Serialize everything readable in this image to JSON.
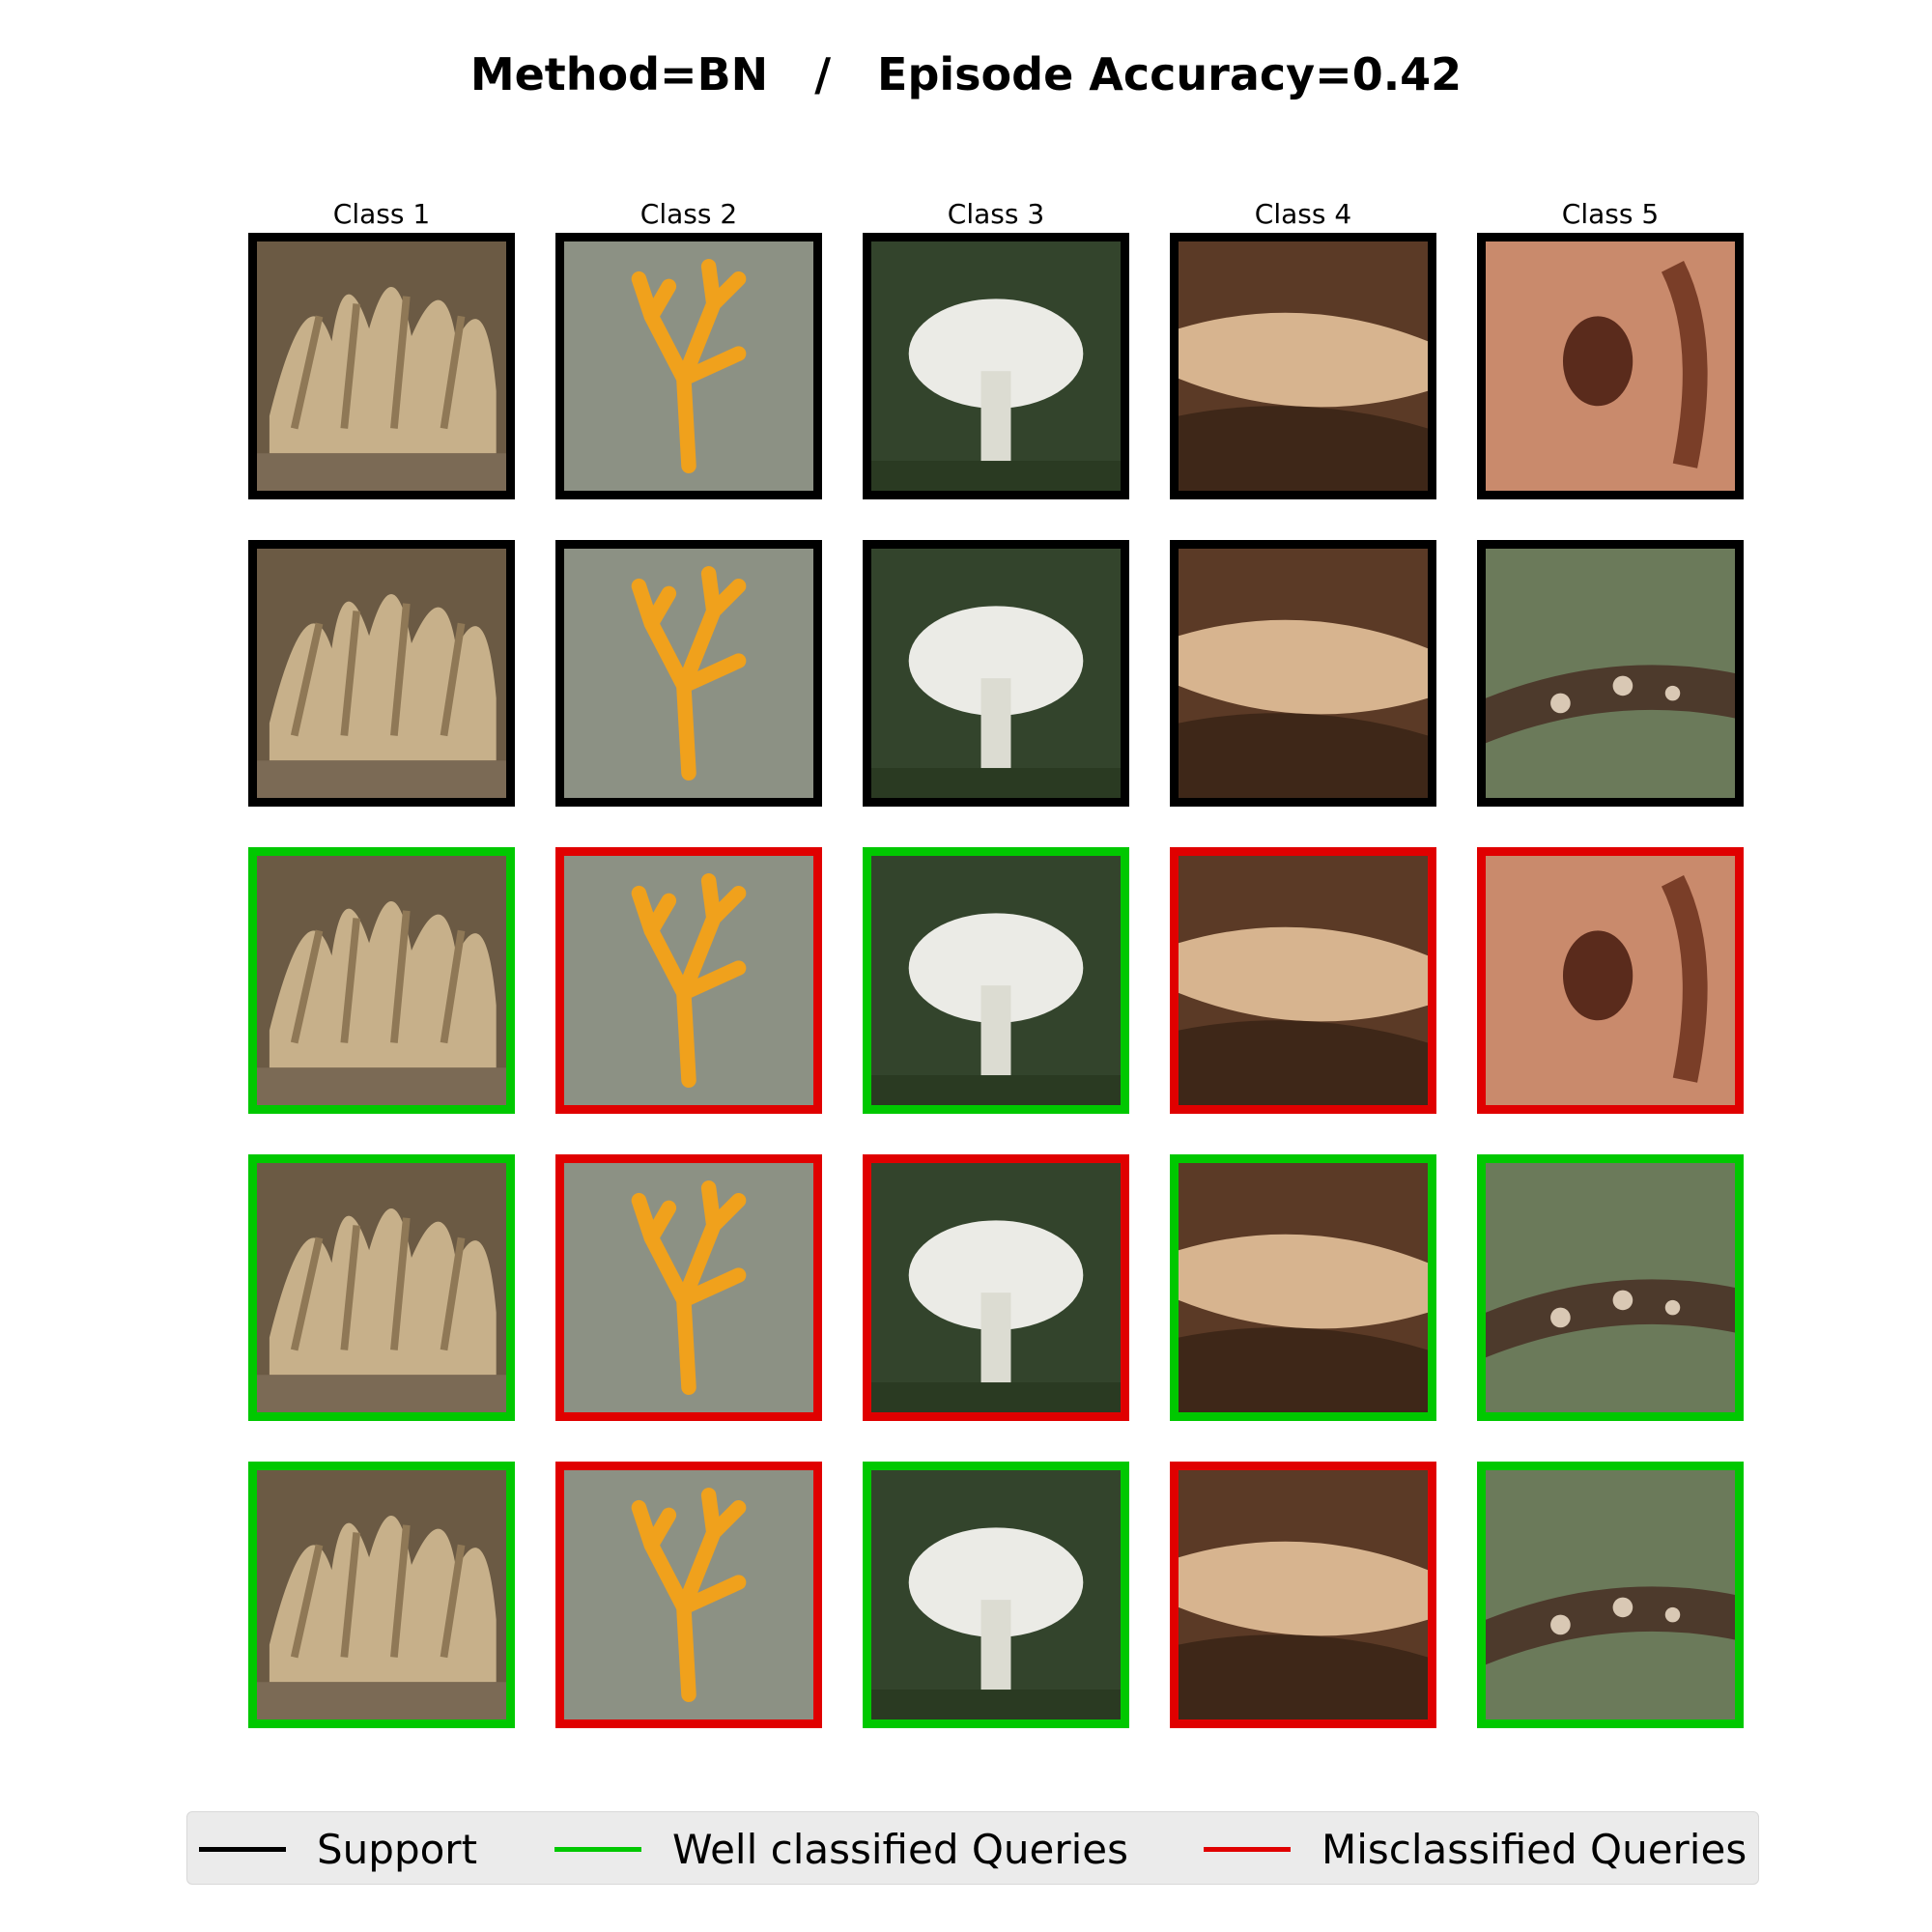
{
  "title": "Method=BN   /   Episode Accuracy=0.42",
  "columns": [
    "Class 1",
    "Class 2",
    "Class 3",
    "Class 4",
    "Class 5"
  ],
  "status_colors": {
    "support": "#000000",
    "well": "#00c800",
    "mis": "#e00000"
  },
  "grid": [
    [
      {
        "status": "support",
        "subject": "coral-fungus-tan"
      },
      {
        "status": "support",
        "subject": "orange-coral-fungus"
      },
      {
        "status": "support",
        "subject": "white-gilled-mushroom"
      },
      {
        "status": "support",
        "subject": "bark-crust-fungus"
      },
      {
        "status": "support",
        "subject": "microscope-spore"
      }
    ],
    [
      {
        "status": "support",
        "subject": "coral-fungus-tan"
      },
      {
        "status": "support",
        "subject": "orange-coral-fungus"
      },
      {
        "status": "support",
        "subject": "white-gilled-mushroom"
      },
      {
        "status": "support",
        "subject": "bark-crust-fungus"
      },
      {
        "status": "support",
        "subject": "branch-crust-fungus"
      }
    ],
    [
      {
        "status": "well",
        "subject": "coral-fungus-tan"
      },
      {
        "status": "mis",
        "subject": "orange-coral-fungus"
      },
      {
        "status": "well",
        "subject": "white-gilled-mushroom"
      },
      {
        "status": "mis",
        "subject": "bark-crust-fungus"
      },
      {
        "status": "mis",
        "subject": "microscope-spore"
      }
    ],
    [
      {
        "status": "well",
        "subject": "coral-fungus-tan"
      },
      {
        "status": "mis",
        "subject": "orange-coral-fungus"
      },
      {
        "status": "mis",
        "subject": "white-gilled-mushroom"
      },
      {
        "status": "well",
        "subject": "bark-crust-fungus"
      },
      {
        "status": "well",
        "subject": "branch-crust-fungus"
      }
    ],
    [
      {
        "status": "well",
        "subject": "coral-fungus-tan"
      },
      {
        "status": "mis",
        "subject": "orange-coral-fungus"
      },
      {
        "status": "well",
        "subject": "white-gilled-mushroom"
      },
      {
        "status": "mis",
        "subject": "bark-crust-fungus"
      },
      {
        "status": "well",
        "subject": "branch-crust-fungus"
      }
    ]
  ],
  "legend": [
    {
      "label": "Support",
      "color": "#000000"
    },
    {
      "label": "Well classified Queries",
      "color": "#00c800"
    },
    {
      "label": "Misclassified Queries",
      "color": "#e00000"
    }
  ]
}
